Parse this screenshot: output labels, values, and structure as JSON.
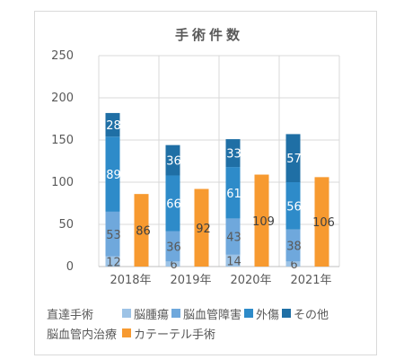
{
  "chart_data": {
    "type": "bar",
    "title": "手術件数",
    "categories": [
      "2018年",
      "2019年",
      "2020年",
      "2021年"
    ],
    "ylim": [
      0,
      250
    ],
    "yticks": [
      0,
      50,
      100,
      150,
      200,
      250
    ],
    "grid": true,
    "legend_position": "bottom",
    "legend_groups": [
      {
        "label": "直達手術",
        "series": [
          "脳腫瘍",
          "脳血管障害",
          "外傷",
          "その他"
        ]
      },
      {
        "label": "脳血管内治療",
        "series": [
          "カテーテル手術"
        ]
      }
    ],
    "stacked_series": [
      {
        "name": "脳腫瘍",
        "values": [
          12,
          6,
          14,
          6
        ],
        "color": "#9dc3e6"
      },
      {
        "name": "脳血管障害",
        "values": [
          53,
          36,
          43,
          38
        ],
        "color": "#6fa8dc"
      },
      {
        "name": "外傷",
        "values": [
          89,
          66,
          61,
          56
        ],
        "color": "#2e8bc9"
      },
      {
        "name": "その他",
        "values": [
          28,
          36,
          33,
          57
        ],
        "color": "#1f6fa5"
      }
    ],
    "side_series": [
      {
        "name": "カテーテル手術",
        "values": [
          86,
          92,
          109,
          106
        ],
        "color": "#f79a30"
      }
    ]
  }
}
